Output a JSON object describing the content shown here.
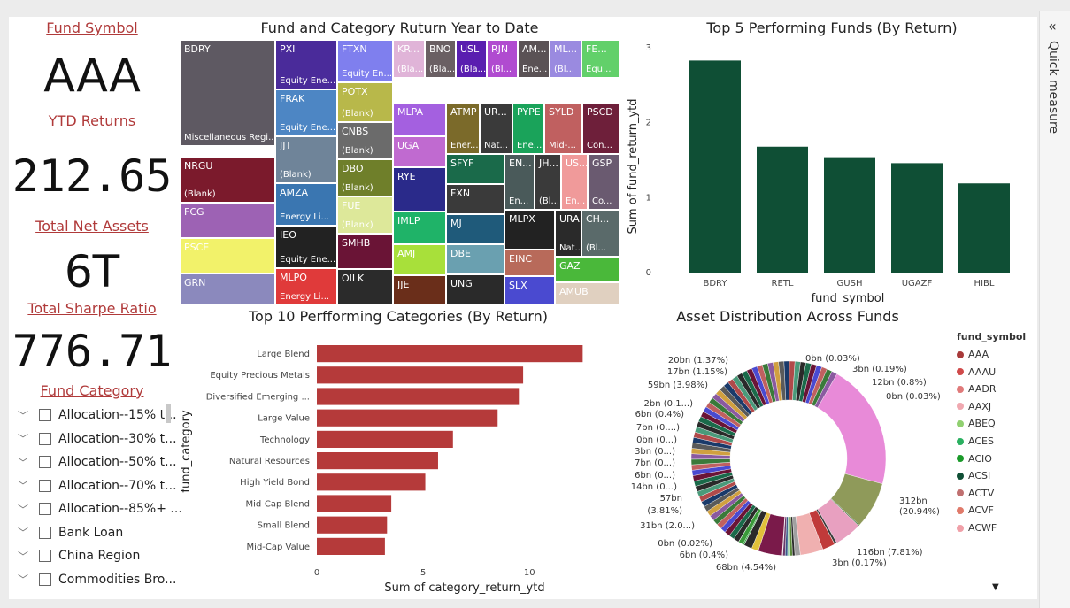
{
  "kpis": {
    "fund_symbol_label": "Fund Symbol",
    "fund_symbol_value": "AAA",
    "ytd_label": "YTD Returns",
    "ytd_value": "212.65",
    "assets_label": "Total Net Assets",
    "assets_value": "6T",
    "sharpe_label": "Total Sharpe Ratio",
    "sharpe_value": "776.71"
  },
  "slicer": {
    "title": "Fund Category",
    "items": [
      "Allocation--15% t...",
      "Allocation--30% t...",
      "Allocation--50% t...",
      "Allocation--70% t...",
      "Allocation--85%+ ...",
      "Bank Loan",
      "China Region",
      "Commodities Bro..."
    ]
  },
  "treemap": {
    "title": "Fund and Category Ruturn Year to Date",
    "cells": [
      {
        "name": "BDRY",
        "cat": "Miscellaneous Regi...",
        "color": "#5e5962"
      },
      {
        "name": "NRGU",
        "cat": "(Blank)",
        "color": "#7b1a2c"
      },
      {
        "name": "FCG",
        "cat": "",
        "color": "#9d62b4"
      },
      {
        "name": "PSCE",
        "cat": "",
        "color": "#f2f26a"
      },
      {
        "name": "GRN",
        "cat": "",
        "color": "#8b89bd"
      },
      {
        "name": "PXI",
        "cat": "Equity Ene...",
        "color": "#4a2b9a"
      },
      {
        "name": "FRAK",
        "cat": "Equity Ene...",
        "color": "#4d86c4"
      },
      {
        "name": "JJT",
        "cat": "(Blank)",
        "color": "#6f8499"
      },
      {
        "name": "AMZA",
        "cat": "Energy Li...",
        "color": "#3a76b1"
      },
      {
        "name": "IEO",
        "cat": "Equity Ene...",
        "color": "#222222"
      },
      {
        "name": "MLPO",
        "cat": "Energy Li...",
        "color": "#e03a3a"
      },
      {
        "name": "FTXN",
        "cat": "Equity En...",
        "color": "#7f7fee"
      },
      {
        "name": "POTX",
        "cat": "(Blank)",
        "color": "#b8b84a"
      },
      {
        "name": "CNBS",
        "cat": "(Blank)",
        "color": "#6b6b6b"
      },
      {
        "name": "DBO",
        "cat": "(Blank)",
        "color": "#6f7f2a"
      },
      {
        "name": "FUE",
        "cat": "(Blank)",
        "color": "#dde89a"
      },
      {
        "name": "SMHB",
        "cat": "",
        "color": "#6a1436"
      },
      {
        "name": "OILK",
        "cat": "",
        "color": "#2b2b2b"
      },
      {
        "name": "KR...",
        "cat": "(Bla...",
        "color": "#e0b4d8"
      },
      {
        "name": "BNO",
        "cat": "(Bla...",
        "color": "#6a5f63"
      },
      {
        "name": "USL",
        "cat": "(Bla...",
        "color": "#5a1eb0"
      },
      {
        "name": "RJN",
        "cat": "(Bl...",
        "color": "#b04bd0"
      },
      {
        "name": "AM...",
        "cat": "Ene...",
        "color": "#5a5255"
      },
      {
        "name": "ML...",
        "cat": "(Bl...",
        "color": "#9a8ae0"
      },
      {
        "name": "FE...",
        "cat": "Equ...",
        "color": "#62d06a"
      },
      {
        "name": "MLPA",
        "cat": "",
        "color": "#a460e0"
      },
      {
        "name": "ATMP",
        "cat": "Ener...",
        "color": "#7b6a2a"
      },
      {
        "name": "UR...",
        "cat": "Nat...",
        "color": "#3a3a3a"
      },
      {
        "name": "PYPE",
        "cat": "Ene...",
        "color": "#1aa35a"
      },
      {
        "name": "SYLD",
        "cat": "Mid-...",
        "color": "#c06060"
      },
      {
        "name": "PSCD",
        "cat": "Con...",
        "color": "#6e1f3a"
      },
      {
        "name": "UGA",
        "cat": "",
        "color": "#c06ad0"
      },
      {
        "name": "RYE",
        "cat": "",
        "color": "#2a2a8a"
      },
      {
        "name": "IMLP",
        "cat": "",
        "color": "#1fb368"
      },
      {
        "name": "AMJ",
        "cat": "",
        "color": "#a8e03a"
      },
      {
        "name": "JJE",
        "cat": "",
        "color": "#6a2e1a"
      },
      {
        "name": "SFYF",
        "cat": "",
        "color": "#1a6a4a"
      },
      {
        "name": "FXN",
        "cat": "",
        "color": "#3a3a3a"
      },
      {
        "name": "MJ",
        "cat": "",
        "color": "#1f5a7a"
      },
      {
        "name": "DBE",
        "cat": "",
        "color": "#6aa0b0"
      },
      {
        "name": "UNG",
        "cat": "",
        "color": "#2a2a2a"
      },
      {
        "name": "EN...",
        "cat": "En...",
        "color": "#4a5a5a"
      },
      {
        "name": "JH...",
        "cat": "(Bl...",
        "color": "#3a3a3a"
      },
      {
        "name": "US...",
        "cat": "En...",
        "color": "#f09a9a"
      },
      {
        "name": "GSP",
        "cat": "Co...",
        "color": "#6a5a70"
      },
      {
        "name": "MLPX",
        "cat": "",
        "color": "#222222"
      },
      {
        "name": "URA",
        "cat": "Nat...",
        "color": "#2a2a2a"
      },
      {
        "name": "CH...",
        "cat": "(Bl...",
        "color": "#5a6a6a"
      },
      {
        "name": "EINC",
        "cat": "",
        "color": "#b86a5a"
      },
      {
        "name": "SLX",
        "cat": "",
        "color": "#4a4ad0"
      },
      {
        "name": "GAZ",
        "cat": "",
        "color": "#4ab83a"
      },
      {
        "name": "AMUB",
        "cat": "",
        "color": "#e0d0c0"
      }
    ]
  },
  "top_funds": {
    "title": "Top 5 Performing Funds (By Return)",
    "ylabel": "Sum of fund_return_ytd",
    "xlabel": "fund_symbol",
    "ticks": [
      "0",
      "1",
      "2",
      "3"
    ],
    "color": "#0f4f35",
    "categories": [
      "BDRY",
      "RETL",
      "GUSH",
      "UGAZF",
      "HIBL"
    ],
    "values": [
      2.83,
      1.68,
      1.54,
      1.46,
      1.19
    ]
  },
  "top_categories": {
    "title": "Top 10 Perfforming Categories (By Return)",
    "xlabel": "Sum of category_return_ytd",
    "ylabel": "fund_category",
    "ticks": [
      "0",
      "5",
      "10"
    ],
    "color": "#b53a3a",
    "categories": [
      "Large Blend",
      "Equity Precious Metals",
      "Diversified Emerging ...",
      "Large Value",
      "Technology",
      "Natural Resources",
      "High Yield Bond",
      "Mid-Cap Blend",
      "Small Blend",
      "Mid-Cap Value"
    ],
    "values": [
      12.5,
      9.7,
      9.5,
      8.5,
      6.4,
      5.7,
      5.1,
      3.5,
      3.3,
      3.2
    ]
  },
  "donut": {
    "title": "Asset Distribution Across Funds",
    "legend_title": "fund_symbol",
    "legend": [
      {
        "label": "AAA",
        "color": "#a83a3a"
      },
      {
        "label": "AAAU",
        "color": "#d04a4a"
      },
      {
        "label": "AADR",
        "color": "#e07a7a"
      },
      {
        "label": "AAXJ",
        "color": "#f0a8b0"
      },
      {
        "label": "ABEQ",
        "color": "#90d070"
      },
      {
        "label": "ACES",
        "color": "#2ab060"
      },
      {
        "label": "ACIO",
        "color": "#1a9a2a"
      },
      {
        "label": "ACSI",
        "color": "#0f4f35"
      },
      {
        "label": "ACTV",
        "color": "#c07070"
      },
      {
        "label": "ACVF",
        "color": "#e07a6a"
      },
      {
        "label": "ACWF",
        "color": "#f0a0a8"
      }
    ],
    "labels": [
      "20bn (1.37%)",
      "0bn (0.03%)",
      "17bn (1.15%)",
      "3bn (0.19%)",
      "59bn (3.98%)",
      "12bn (0.8%)",
      "0bn (0.03%)",
      "2bn (0.1...)",
      "6bn (0.4%)",
      "7bn (0....)",
      "0bn (0...)",
      "3bn (0...)",
      "7bn (0...)",
      "6bn (0...)",
      "14bn (0...)",
      "57bn",
      "(3.81%)",
      "31bn (2.0...)",
      "0bn (0.02%)",
      "6bn (0.4%)",
      "68bn (4.54%)",
      "3bn (0.17%)",
      "116bn (7.81%)",
      "312bn",
      "(20.94%)"
    ],
    "segments": [
      20.94,
      7.81,
      0.17,
      4.54,
      0.4,
      0.02,
      2.1,
      3.81,
      0.9,
      0.4,
      0.4,
      0.4,
      0.4,
      0.4,
      0.1,
      3.98,
      1.15,
      1.37,
      0.03,
      0.19,
      0.8,
      0.03
    ]
  },
  "quick_measure": "Quick measure"
}
